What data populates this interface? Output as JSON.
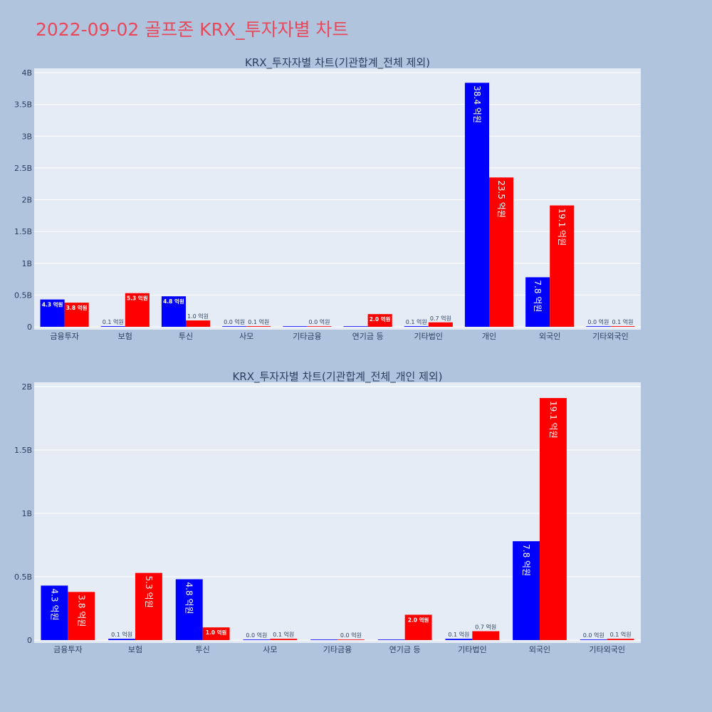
{
  "page": {
    "title": "2022-09-02 골프존 KRX_투자자별 차트"
  },
  "colors": {
    "buy": "#0000ff",
    "sell": "#ff0000",
    "title": "#e8485a",
    "background": "#b0c4de",
    "plot": "#e5ecf6"
  },
  "chart_data": [
    {
      "type": "bar",
      "title": "KRX_투자자별 차트(기관합계_전체 제외)",
      "categories": [
        "금융투자",
        "보험",
        "투신",
        "사모",
        "기타금융",
        "연기금 등",
        "기타법인",
        "개인",
        "외국인",
        "기타외국인"
      ],
      "ylim": [
        0,
        4.0
      ],
      "yticks": [
        0,
        0.5,
        1,
        1.5,
        2,
        2.5,
        3,
        3.5,
        4
      ],
      "ytick_labels": [
        "0",
        "0.5B",
        "1B",
        "1.5B",
        "2B",
        "2.5B",
        "3B",
        "3.5B",
        "4B"
      ],
      "grid": true,
      "series": [
        {
          "color": "#0000ff",
          "values": [
            0.43,
            0.01,
            0.48,
            0.0,
            0.0,
            0.0,
            0.01,
            3.84,
            0.78,
            0.0
          ],
          "labels": [
            "4.3 억원",
            "0.1 억원",
            "4.8 억원",
            "0.0 억원",
            "",
            "",
            "0.1 억원",
            "38.4 억원",
            "7.8 억원",
            "0.0 억원"
          ]
        },
        {
          "color": "#ff0000",
          "values": [
            0.38,
            0.53,
            0.1,
            0.01,
            0.0,
            0.2,
            0.07,
            2.35,
            1.91,
            0.01
          ],
          "labels": [
            "3.8 억원",
            "5.3 억원",
            "1.0 억원",
            "0.1 억원",
            "0.0 억원",
            "2.0 억원",
            "0.7 억원",
            "23.5 억원",
            "19.1 억원",
            "0.1 억원"
          ]
        }
      ]
    },
    {
      "type": "bar",
      "title": "KRX_투자자별 차트(기관합계_전체_개인 제외)",
      "categories": [
        "금융투자",
        "보험",
        "투신",
        "사모",
        "기타금융",
        "연기금 등",
        "기타법인",
        "외국인",
        "기타외국인"
      ],
      "ylim": [
        0,
        2.0
      ],
      "yticks": [
        0,
        0.5,
        1,
        1.5,
        2
      ],
      "ytick_labels": [
        "0",
        "0.5B",
        "1B",
        "1.5B",
        "2B"
      ],
      "grid": true,
      "series": [
        {
          "color": "#0000ff",
          "values": [
            0.43,
            0.01,
            0.48,
            0.0,
            0.0,
            0.0,
            0.01,
            0.78,
            0.0
          ],
          "labels": [
            "4.3 억원",
            "0.1 억원",
            "4.8 억원",
            "0.0 억원",
            "",
            "",
            "0.1 억원",
            "7.8 억원",
            "0.0 억원"
          ]
        },
        {
          "color": "#ff0000",
          "values": [
            0.38,
            0.53,
            0.1,
            0.01,
            0.0,
            0.2,
            0.07,
            1.91,
            0.01
          ],
          "labels": [
            "3.8 억원",
            "5.3 억원",
            "1.0 억원",
            "0.1 억원",
            "0.0 억원",
            "2.0 억원",
            "0.7 억원",
            "19.1 억원",
            "0.1 억원"
          ]
        }
      ]
    }
  ]
}
